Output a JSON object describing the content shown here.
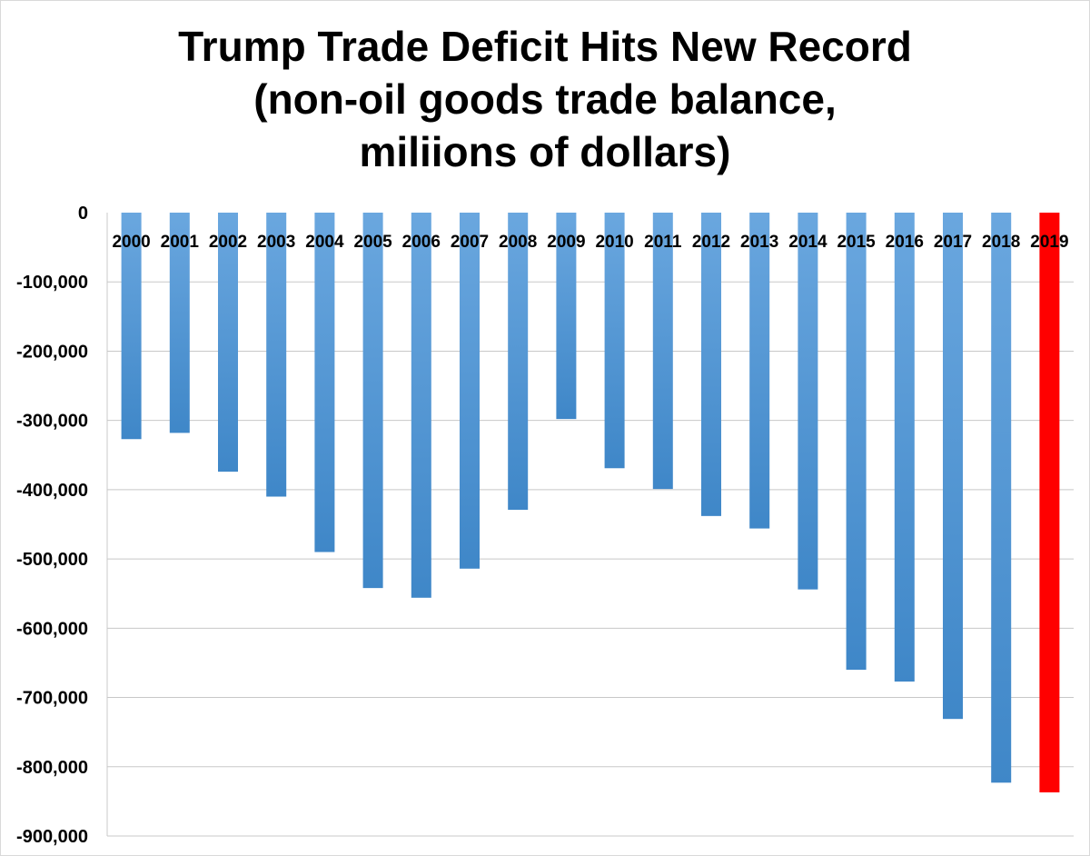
{
  "chart_data": {
    "type": "bar",
    "title_lines": [
      "Trump Trade Deficit Hits New Record",
      "(non-oil goods trade balance,",
      "miliions of dollars)"
    ],
    "categories": [
      "2000",
      "2001",
      "2002",
      "2003",
      "2004",
      "2005",
      "2006",
      "2007",
      "2008",
      "2009",
      "2010",
      "2011",
      "2012",
      "2013",
      "2014",
      "2015",
      "2016",
      "2017",
      "2018",
      "2019"
    ],
    "values": [
      -327000,
      -318000,
      -374000,
      -410000,
      -490000,
      -542000,
      -556000,
      -514000,
      -429000,
      -298000,
      -369000,
      -399000,
      -438000,
      -456000,
      -544000,
      -660000,
      -677000,
      -731000,
      -823000,
      -837000
    ],
    "ylim": [
      -900000,
      0
    ],
    "y_ticks": [
      0,
      -100000,
      -200000,
      -300000,
      -400000,
      -500000,
      -600000,
      -700000,
      -800000,
      -900000
    ],
    "y_tick_labels": [
      "0",
      "-100,000",
      "-200,000",
      "-300,000",
      "-400,000",
      "-500,000",
      "-600,000",
      "-700,000",
      "-800,000",
      "-900,000"
    ],
    "xlabel": "",
    "ylabel": "",
    "grid": true,
    "legend": "none",
    "colors": {
      "bar_top": "#6aa7df",
      "bar_bottom": "#3f87c8",
      "highlight": "#ff0000",
      "gridline": "#c8c8c8"
    },
    "highlight_category": "2019"
  }
}
